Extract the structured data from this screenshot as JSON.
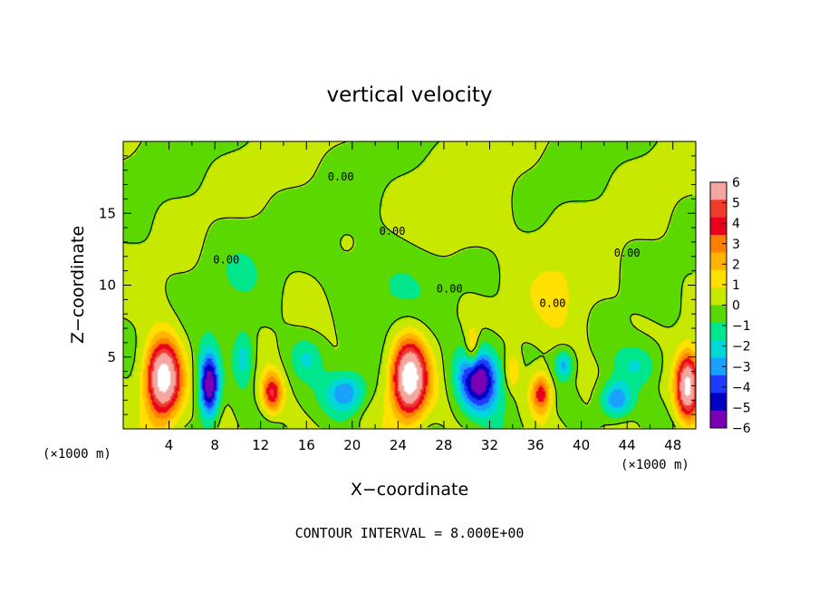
{
  "chart_data": {
    "type": "heatmap",
    "title": "vertical velocity",
    "xlabel": "X−coordinate",
    "ylabel": "Z−coordinate",
    "x_unit_left": "(×1000 m)",
    "x_unit_right": "(×1000 m)",
    "xlim": [
      0,
      50
    ],
    "ylim": [
      0,
      20
    ],
    "x_ticks": [
      "4",
      "8",
      "12",
      "16",
      "20",
      "24",
      "28",
      "32",
      "36",
      "40",
      "44",
      "48"
    ],
    "y_ticks": [
      "5",
      "10",
      "15"
    ],
    "colorbar": {
      "range": [
        -6,
        6
      ],
      "tick_labels": [
        "6",
        "5",
        "4",
        "3",
        "2",
        "1",
        "0",
        "−1",
        "−2",
        "−3",
        "−4",
        "−5",
        "−6"
      ],
      "colors": [
        "#f4a6a0",
        "#ef3b2c",
        "#e8001c",
        "#ff7f00",
        "#ffb400",
        "#ffe000",
        "#c8e800",
        "#5ad800",
        "#00e68c",
        "#00d8d8",
        "#1aa0ff",
        "#1e3cff",
        "#0000c0",
        "#7a00b4"
      ]
    },
    "contour_label": "0.00",
    "footnote": "CONTOUR INTERVAL = 8.000E+00",
    "features": [
      {
        "x": 3.5,
        "z": 3.5,
        "amp": 9,
        "sx": 1.5,
        "sz": 2.6
      },
      {
        "x": 25,
        "z": 3.5,
        "amp": 9,
        "sx": 1.5,
        "sz": 2.6
      },
      {
        "x": 49.3,
        "z": 3,
        "amp": 8,
        "sx": 1.0,
        "sz": 2.2
      },
      {
        "x": 13,
        "z": 2.5,
        "amp": 4.5,
        "sx": 0.9,
        "sz": 1.4
      },
      {
        "x": 36.5,
        "z": 2.5,
        "amp": 4.5,
        "sx": 0.9,
        "sz": 1.4
      },
      {
        "x": 30.5,
        "z": 5.5,
        "amp": 3,
        "sx": 0.6,
        "sz": 1.5
      },
      {
        "x": 7.5,
        "z": 3,
        "amp": -7,
        "sx": 0.9,
        "sz": 2.3
      },
      {
        "x": 31,
        "z": 3.5,
        "amp": -6.5,
        "sx": 1.8,
        "sz": 2.2
      },
      {
        "x": 19.5,
        "z": 2.5,
        "amp": -3.5,
        "sx": 1.7,
        "sz": 1.4
      },
      {
        "x": 43,
        "z": 2,
        "amp": -4,
        "sx": 1.4,
        "sz": 1.3
      },
      {
        "x": 38.5,
        "z": 4.5,
        "amp": -3,
        "sx": 0.8,
        "sz": 1
      },
      {
        "x": 10.5,
        "z": 5,
        "amp": -2.5,
        "sx": 1,
        "sz": 2
      },
      {
        "x": 45,
        "z": 4.5,
        "amp": -2,
        "sx": 2,
        "sz": 1.5
      },
      {
        "x": 16,
        "z": 5,
        "amp": -1.8,
        "sx": 1.5,
        "sz": 1.5
      },
      {
        "x": 34,
        "z": 4,
        "amp": 2,
        "sx": 0.6,
        "sz": 1.2
      },
      {
        "x": 23,
        "z": 10,
        "amp": -1.0,
        "sx": 4,
        "sz": 3
      },
      {
        "x": 10,
        "z": 11,
        "amp": -0.8,
        "sx": 3,
        "sz": 3
      },
      {
        "x": 38,
        "z": 9,
        "amp": 1.0,
        "sx": 3,
        "sz": 4
      },
      {
        "x": 30,
        "z": 15,
        "amp": 0.7,
        "sx": 4,
        "sz": 3
      }
    ]
  }
}
